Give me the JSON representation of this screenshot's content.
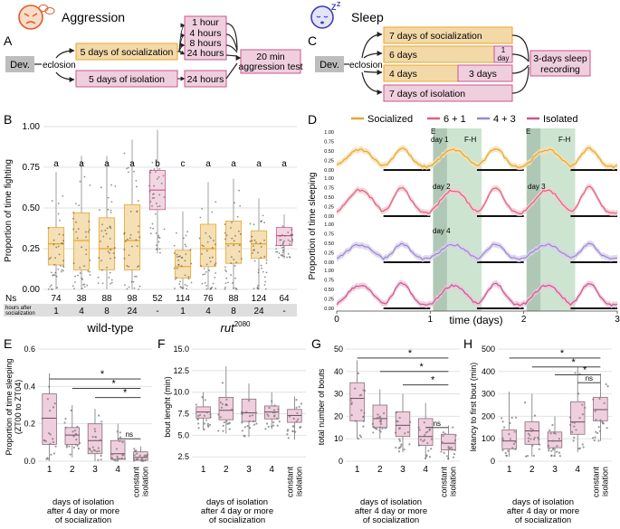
{
  "colors": {
    "socialized": "#E7A72D",
    "socialized_fill": "#F3D9A8",
    "isolated": "#C8578E",
    "isolated_fill": "#EFCFDD",
    "pink_line": "#E0607E",
    "purple_line": "#9A86D0",
    "dev_box": "#BDBDBD",
    "shade": "#B8D8BE",
    "shade_dark": "#6E9B79",
    "header_bg": "#DEDEDE"
  },
  "panel_labels": [
    "A",
    "B",
    "C",
    "D",
    "E",
    "F",
    "G",
    "H"
  ],
  "icons": {
    "aggression": "angry-fly-icon",
    "sleep": "sleeping-fly-icon"
  },
  "panelA": {
    "title": "Aggression",
    "dev": "Dev.",
    "eclosion": "eclosion",
    "socialization": "5 days of socialization",
    "isolation": "5 days of isolation",
    "times": [
      "1 hour",
      "4 hours",
      "8 hours",
      "24 hours"
    ],
    "iso_time": "24 hours",
    "test": [
      "20 min",
      "aggression test"
    ]
  },
  "panelC": {
    "title": "Sleep",
    "dev": "Dev.",
    "eclosion": "eclosion",
    "rows": [
      {
        "a": "7 days of socialization",
        "b": ""
      },
      {
        "a": "6 days",
        "b": "1 day"
      },
      {
        "a": "4 days",
        "b": "3 days"
      },
      {
        "a": "7 days of isolation",
        "b": ""
      }
    ],
    "recording": [
      "3-days sleep",
      "recording"
    ]
  },
  "chart_data": [
    {
      "id": "B",
      "type": "box",
      "ylabel": "Proportion of time fighting",
      "yticks": [
        "0.00",
        "0.25",
        "0.50",
        "0.75",
        "1.00"
      ],
      "ylim": [
        0,
        1
      ],
      "groups": [
        {
          "q1": 0.15,
          "med": 0.28,
          "q3": 0.38,
          "lo": 0.0,
          "hi": 0.72,
          "color": "soc",
          "letter": "a",
          "n": "74",
          "h": "1"
        },
        {
          "q1": 0.12,
          "med": 0.3,
          "q3": 0.47,
          "lo": 0.0,
          "hi": 0.82,
          "color": "soc",
          "letter": "a",
          "n": "38",
          "h": "4"
        },
        {
          "q1": 0.12,
          "med": 0.25,
          "q3": 0.44,
          "lo": 0.0,
          "hi": 0.82,
          "color": "soc",
          "letter": "a",
          "n": "88",
          "h": "8"
        },
        {
          "q1": 0.12,
          "med": 0.3,
          "q3": 0.52,
          "lo": 0.0,
          "hi": 0.92,
          "color": "soc",
          "letter": "a",
          "n": "98",
          "h": "24"
        },
        {
          "q1": 0.49,
          "med": 0.61,
          "q3": 0.73,
          "lo": 0.22,
          "hi": 0.98,
          "color": "iso",
          "letter": "b",
          "n": "52",
          "h": "-"
        },
        {
          "q1": 0.07,
          "med": 0.14,
          "q3": 0.24,
          "lo": 0.0,
          "hi": 0.48,
          "color": "soc",
          "letter": "c",
          "n": "114",
          "h": "1"
        },
        {
          "q1": 0.14,
          "med": 0.25,
          "q3": 0.4,
          "lo": 0.0,
          "hi": 0.66,
          "color": "soc",
          "letter": "a",
          "n": "76",
          "h": "4"
        },
        {
          "q1": 0.16,
          "med": 0.28,
          "q3": 0.42,
          "lo": 0.0,
          "hi": 0.68,
          "color": "soc",
          "letter": "a",
          "n": "88",
          "h": "8"
        },
        {
          "q1": 0.19,
          "med": 0.28,
          "q3": 0.36,
          "lo": 0.0,
          "hi": 0.56,
          "color": "soc",
          "letter": "a",
          "n": "124",
          "h": "24"
        },
        {
          "q1": 0.27,
          "med": 0.33,
          "q3": 0.38,
          "lo": 0.19,
          "hi": 0.46,
          "color": "iso",
          "letter": "a",
          "n": "64",
          "h": "-"
        }
      ],
      "ns_label": "Ns",
      "hours_label": [
        "hours after",
        "socialization"
      ],
      "genotypes": [
        "wild-type",
        "rut",
        "2080"
      ]
    },
    {
      "id": "D",
      "type": "line",
      "legend": [
        "Socialized",
        "6 + 1",
        "4 + 3",
        "Isolated"
      ],
      "ylabel": "Proportion of time sleeping",
      "yticks": [
        "0.00",
        "0.25",
        "0.50",
        "0.75",
        "1.00"
      ],
      "xlabel": "time (days)",
      "xticks": [
        "0",
        "1",
        "2",
        "3"
      ],
      "annot": [
        "E",
        "day 1",
        "F-H",
        "E",
        "day 2",
        "day 3",
        "day 4",
        "F-H"
      ]
    },
    {
      "id": "E",
      "type": "box",
      "ylabel": [
        "Proportion of time sleeping",
        "(ZT00 to ZT04)"
      ],
      "yticks": [
        "0.0",
        "0.2",
        "0.4",
        "0.6"
      ],
      "ylim": [
        0,
        0.6
      ],
      "xticks": [
        "1",
        "2",
        "3",
        "4"
      ],
      "last": [
        "constant",
        "isolation"
      ],
      "xlabel": [
        "days of isolation",
        "after 4 day or more",
        "of socialization"
      ],
      "groups": [
        {
          "q1": 0.09,
          "med": 0.23,
          "q3": 0.36,
          "lo": 0.0,
          "hi": 0.47
        },
        {
          "q1": 0.09,
          "med": 0.14,
          "q3": 0.18,
          "lo": 0.02,
          "hi": 0.3
        },
        {
          "q1": 0.04,
          "med": 0.11,
          "q3": 0.2,
          "lo": 0.0,
          "hi": 0.28
        },
        {
          "q1": 0.01,
          "med": 0.04,
          "q3": 0.11,
          "lo": 0.0,
          "hi": 0.2
        },
        {
          "q1": 0.005,
          "med": 0.02,
          "q3": 0.05,
          "lo": 0.0,
          "hi": 0.08
        }
      ],
      "sig": [
        {
          "a": 1,
          "b": 5,
          "y": 0.44,
          "label": "*"
        },
        {
          "a": 2,
          "b": 5,
          "y": 0.39,
          "label": "*"
        },
        {
          "a": 3,
          "b": 5,
          "y": 0.34,
          "label": "*"
        },
        {
          "a": 4,
          "b": 5,
          "y": 0.12,
          "label": "ns"
        }
      ]
    },
    {
      "id": "F",
      "type": "box",
      "ylabel": "bout lenght (min)",
      "yticks": [
        "2.5",
        "5.0",
        "7.5",
        "10.0",
        "12.5",
        "15.0"
      ],
      "ylim": [
        2,
        15
      ],
      "xticks": [
        "1",
        "2",
        "3",
        "4"
      ],
      "last": [
        "constant",
        "isolation"
      ],
      "xlabel": [
        "days of isolation",
        "after 4 day or more",
        "of socialization"
      ],
      "groups": [
        {
          "q1": 7.0,
          "med": 7.7,
          "q3": 8.3,
          "lo": 5.6,
          "hi": 10.0
        },
        {
          "q1": 6.8,
          "med": 7.9,
          "q3": 9.4,
          "lo": 5.2,
          "hi": 13.0
        },
        {
          "q1": 6.6,
          "med": 7.6,
          "q3": 9.2,
          "lo": 4.8,
          "hi": 11.0
        },
        {
          "q1": 6.9,
          "med": 7.7,
          "q3": 8.4,
          "lo": 5.7,
          "hi": 10.0
        },
        {
          "q1": 6.5,
          "med": 7.3,
          "q3": 8.0,
          "lo": 4.5,
          "hi": 9.5
        }
      ],
      "sig": []
    },
    {
      "id": "G",
      "type": "box",
      "ylabel": "total number of bouts",
      "yticks": [
        "0",
        "10",
        "20",
        "30",
        "40",
        "50"
      ],
      "ylim": [
        0,
        50
      ],
      "xticks": [
        "1",
        "2",
        "3",
        "4"
      ],
      "last": [
        "constant",
        "isolation"
      ],
      "xlabel": [
        "days of isolation",
        "after 4 day or more",
        "of socialization"
      ],
      "groups": [
        {
          "q1": 18,
          "med": 28,
          "q3": 35,
          "lo": 10,
          "hi": 45
        },
        {
          "q1": 15,
          "med": 19,
          "q3": 25,
          "lo": 10,
          "hi": 32
        },
        {
          "q1": 11,
          "med": 16,
          "q3": 22,
          "lo": 4,
          "hi": 30
        },
        {
          "q1": 7,
          "med": 11,
          "q3": 19,
          "lo": 1,
          "hi": 26
        },
        {
          "q1": 5,
          "med": 8,
          "q3": 12,
          "lo": 1,
          "hi": 16
        }
      ],
      "sig": [
        {
          "a": 1,
          "b": 5,
          "y": 46,
          "label": "*"
        },
        {
          "a": 2,
          "b": 5,
          "y": 40,
          "label": "*"
        },
        {
          "a": 3,
          "b": 5,
          "y": 34,
          "label": "*"
        },
        {
          "a": 4,
          "b": 5,
          "y": 15,
          "label": "ns"
        }
      ]
    },
    {
      "id": "H",
      "type": "box",
      "ylabel": "letancy to first bout (min)",
      "yticks": [
        "0",
        "100",
        "200",
        "300",
        "400",
        "500"
      ],
      "ylim": [
        0,
        500
      ],
      "xticks": [
        "1",
        "2",
        "3",
        "4"
      ],
      "last": [
        "constant",
        "isolation"
      ],
      "xlabel": [
        "days of isolation",
        "after 4 day or more",
        "of socialization"
      ],
      "groups": [
        {
          "q1": 55,
          "med": 90,
          "q3": 140,
          "lo": 20,
          "hi": 310
        },
        {
          "q1": 75,
          "med": 135,
          "q3": 175,
          "lo": 20,
          "hi": 300
        },
        {
          "q1": 60,
          "med": 90,
          "q3": 130,
          "lo": 20,
          "hi": 200
        },
        {
          "q1": 120,
          "med": 175,
          "q3": 265,
          "lo": 40,
          "hi": 420
        },
        {
          "q1": 180,
          "med": 230,
          "q3": 285,
          "lo": 90,
          "hi": 390
        }
      ],
      "sig": [
        {
          "a": 1,
          "b": 5,
          "y": 460,
          "label": "*"
        },
        {
          "a": 2,
          "b": 5,
          "y": 420,
          "label": "*"
        },
        {
          "a": 3,
          "b": 5,
          "y": 385,
          "label": "*"
        },
        {
          "a": 4,
          "b": 5,
          "y": 350,
          "label": "ns"
        }
      ]
    }
  ]
}
